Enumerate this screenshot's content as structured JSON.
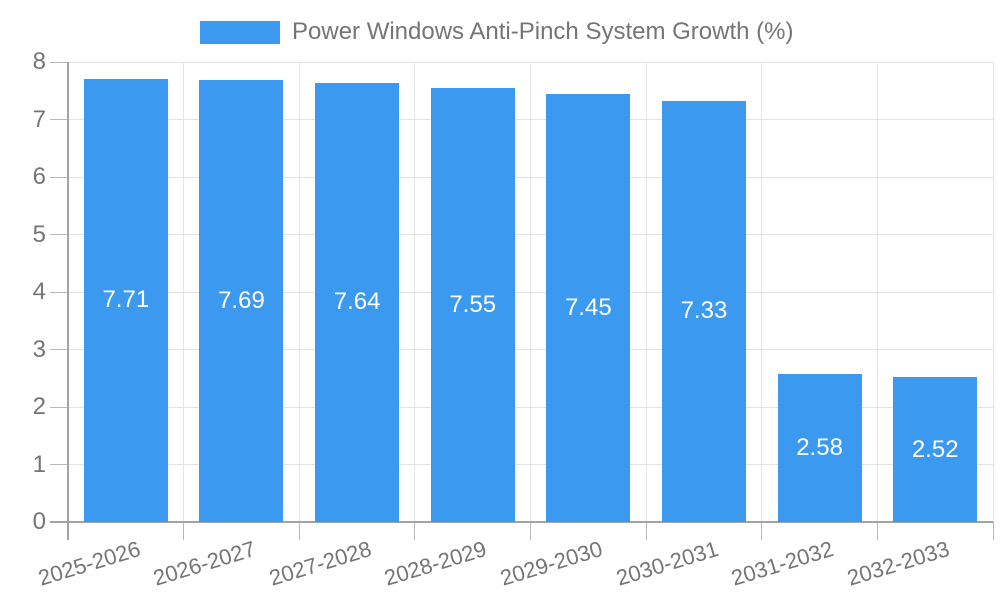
{
  "legend": {
    "label": "Power Windows Anti-Pinch System Growth (%)"
  },
  "chart_data": {
    "type": "bar",
    "title": "Power Windows Anti-Pinch System Growth (%)",
    "categories": [
      "2025-2026",
      "2026-2027",
      "2027-2028",
      "2028-2029",
      "2029-2030",
      "2030-2031",
      "2031-2032",
      "2032-2033"
    ],
    "values": [
      7.71,
      7.69,
      7.64,
      7.55,
      7.45,
      7.33,
      2.58,
      2.52
    ],
    "bar_labels": [
      "7.71",
      "7.69",
      "7.64",
      "7.55",
      "7.45",
      "7.33",
      "2.58",
      "2.52"
    ],
    "xlabel": "",
    "ylabel": "",
    "ylim": [
      0,
      8
    ],
    "yticks": [
      "0",
      "1",
      "2",
      "3",
      "4",
      "5",
      "6",
      "7",
      "8"
    ],
    "grid": true,
    "legend_position": "top-center",
    "x_label_rotation_deg": -17,
    "colors": {
      "bar": "#3B99F0",
      "bar_label": "#FFFFFF",
      "axis_text": "#757575",
      "grid_line": "#E3E3E3",
      "axis_line": "#A3A3A3",
      "tick_line": "#B8B8B8",
      "background": "#FFFFFF"
    }
  }
}
